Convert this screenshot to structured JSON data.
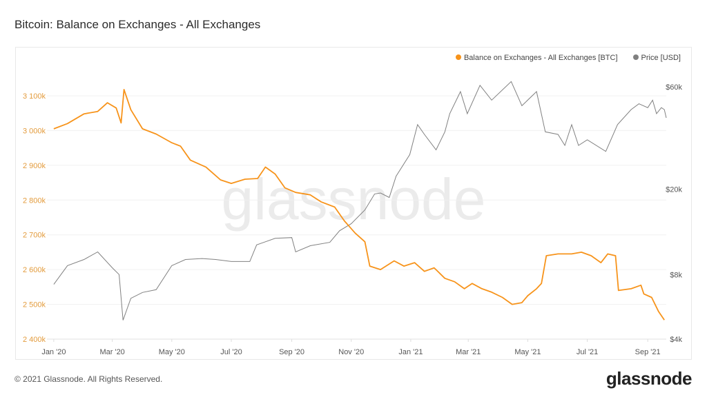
{
  "title": "Bitcoin: Balance on Exchanges - All Exchanges",
  "footer": "© 2021 Glassnode. All Rights Reserved.",
  "logo": "glassnode",
  "watermark": "glassnode",
  "colors": {
    "balance": "#f7931a",
    "balance_text": "#e39b3c",
    "price": "#808080",
    "grid": "#f0f0f0"
  },
  "chart_data": {
    "type": "line",
    "title": "Bitcoin: Balance on Exchanges - All Exchanges",
    "legend_position": "top-right",
    "x_ticks": [
      "Jan '20",
      "Mar '20",
      "May '20",
      "Jul '20",
      "Sep '20",
      "Nov '20",
      "Jan '21",
      "Mar '21",
      "May '21",
      "Jul '21",
      "Sep '21"
    ],
    "x_tick_dates": [
      "2020-01-01",
      "2020-03-01",
      "2020-05-01",
      "2020-07-01",
      "2020-09-01",
      "2020-11-01",
      "2021-01-01",
      "2021-03-01",
      "2021-05-01",
      "2021-07-01",
      "2021-09-01"
    ],
    "x_range": [
      "2019-12-25",
      "2021-09-20"
    ],
    "left_axis": {
      "label": "BTC",
      "ylim": [
        2400,
        3100
      ],
      "ticks": [
        2400,
        2500,
        2600,
        2700,
        2800,
        2900,
        3000,
        3100
      ],
      "tick_labels": [
        "2 400k",
        "2 500k",
        "2 600k",
        "2 700k",
        "2 800k",
        "2 900k",
        "3 000k",
        "3 100k"
      ]
    },
    "right_axis": {
      "label": "USD",
      "scale": "log",
      "ylim": [
        4000,
        60000
      ],
      "ticks": [
        4000,
        8000,
        20000,
        60000
      ],
      "tick_labels": [
        "$4k",
        "$8k",
        "$20k",
        "$60k"
      ]
    },
    "series": [
      {
        "name": "Balance on Exchanges - All Exchanges [BTC]",
        "axis": "left",
        "unit": "thousand BTC",
        "points": [
          [
            "2020-01-01",
            3005
          ],
          [
            "2020-01-15",
            3020
          ],
          [
            "2020-02-01",
            3048
          ],
          [
            "2020-02-15",
            3055
          ],
          [
            "2020-02-25",
            3080
          ],
          [
            "2020-03-05",
            3065
          ],
          [
            "2020-03-10",
            3022
          ],
          [
            "2020-03-13",
            3118
          ],
          [
            "2020-03-20",
            3060
          ],
          [
            "2020-04-01",
            3005
          ],
          [
            "2020-04-15",
            2990
          ],
          [
            "2020-05-01",
            2965
          ],
          [
            "2020-05-10",
            2955
          ],
          [
            "2020-05-20",
            2915
          ],
          [
            "2020-06-05",
            2895
          ],
          [
            "2020-06-20",
            2858
          ],
          [
            "2020-07-01",
            2848
          ],
          [
            "2020-07-15",
            2860
          ],
          [
            "2020-07-28",
            2862
          ],
          [
            "2020-08-05",
            2895
          ],
          [
            "2020-08-15",
            2875
          ],
          [
            "2020-08-25",
            2835
          ],
          [
            "2020-09-05",
            2822
          ],
          [
            "2020-09-20",
            2815
          ],
          [
            "2020-10-01",
            2795
          ],
          [
            "2020-10-15",
            2780
          ],
          [
            "2020-10-25",
            2740
          ],
          [
            "2020-11-05",
            2705
          ],
          [
            "2020-11-15",
            2680
          ],
          [
            "2020-11-20",
            2610
          ],
          [
            "2020-12-01",
            2600
          ],
          [
            "2020-12-15",
            2625
          ],
          [
            "2020-12-25",
            2610
          ],
          [
            "2021-01-05",
            2620
          ],
          [
            "2021-01-15",
            2595
          ],
          [
            "2021-01-25",
            2605
          ],
          [
            "2021-02-05",
            2575
          ],
          [
            "2021-02-15",
            2565
          ],
          [
            "2021-02-25",
            2545
          ],
          [
            "2021-03-05",
            2560
          ],
          [
            "2021-03-15",
            2545
          ],
          [
            "2021-03-25",
            2535
          ],
          [
            "2021-04-05",
            2520
          ],
          [
            "2021-04-15",
            2500
          ],
          [
            "2021-04-25",
            2505
          ],
          [
            "2021-05-01",
            2525
          ],
          [
            "2021-05-10",
            2545
          ],
          [
            "2021-05-15",
            2560
          ],
          [
            "2021-05-20",
            2640
          ],
          [
            "2021-06-01",
            2645
          ],
          [
            "2021-06-15",
            2645
          ],
          [
            "2021-06-25",
            2650
          ],
          [
            "2021-07-05",
            2640
          ],
          [
            "2021-07-15",
            2620
          ],
          [
            "2021-07-22",
            2645
          ],
          [
            "2021-07-30",
            2640
          ],
          [
            "2021-08-02",
            2540
          ],
          [
            "2021-08-15",
            2545
          ],
          [
            "2021-08-25",
            2555
          ],
          [
            "2021-08-28",
            2530
          ],
          [
            "2021-09-05",
            2520
          ],
          [
            "2021-09-12",
            2480
          ],
          [
            "2021-09-18",
            2455
          ]
        ]
      },
      {
        "name": "Price [USD]",
        "axis": "right",
        "unit": "USD",
        "points": [
          [
            "2020-01-01",
            7200
          ],
          [
            "2020-01-15",
            8800
          ],
          [
            "2020-02-01",
            9400
          ],
          [
            "2020-02-15",
            10200
          ],
          [
            "2020-03-01",
            8600
          ],
          [
            "2020-03-08",
            8000
          ],
          [
            "2020-03-12",
            4900
          ],
          [
            "2020-03-20",
            6200
          ],
          [
            "2020-04-01",
            6600
          ],
          [
            "2020-04-15",
            6800
          ],
          [
            "2020-05-01",
            8800
          ],
          [
            "2020-05-15",
            9400
          ],
          [
            "2020-06-01",
            9500
          ],
          [
            "2020-06-15",
            9400
          ],
          [
            "2020-07-01",
            9200
          ],
          [
            "2020-07-20",
            9200
          ],
          [
            "2020-07-27",
            11000
          ],
          [
            "2020-08-15",
            11800
          ],
          [
            "2020-09-01",
            11900
          ],
          [
            "2020-09-05",
            10200
          ],
          [
            "2020-09-20",
            10900
          ],
          [
            "2020-10-10",
            11300
          ],
          [
            "2020-10-20",
            12800
          ],
          [
            "2020-11-01",
            13800
          ],
          [
            "2020-11-15",
            16000
          ],
          [
            "2020-11-25",
            19000
          ],
          [
            "2020-12-01",
            19200
          ],
          [
            "2020-12-10",
            18300
          ],
          [
            "2020-12-17",
            23000
          ],
          [
            "2020-12-31",
            29000
          ],
          [
            "2021-01-08",
            40000
          ],
          [
            "2021-01-15",
            36000
          ],
          [
            "2021-01-27",
            30500
          ],
          [
            "2021-02-05",
            37000
          ],
          [
            "2021-02-10",
            45000
          ],
          [
            "2021-02-21",
            57000
          ],
          [
            "2021-02-28",
            45000
          ],
          [
            "2021-03-13",
            61000
          ],
          [
            "2021-03-25",
            52000
          ],
          [
            "2021-04-14",
            63500
          ],
          [
            "2021-04-25",
            49000
          ],
          [
            "2021-05-10",
            57000
          ],
          [
            "2021-05-19",
            37000
          ],
          [
            "2021-06-01",
            36000
          ],
          [
            "2021-06-08",
            32000
          ],
          [
            "2021-06-15",
            40000
          ],
          [
            "2021-06-22",
            32000
          ],
          [
            "2021-07-01",
            34000
          ],
          [
            "2021-07-20",
            30000
          ],
          [
            "2021-08-01",
            40000
          ],
          [
            "2021-08-15",
            47000
          ],
          [
            "2021-08-23",
            50000
          ],
          [
            "2021-09-01",
            48000
          ],
          [
            "2021-09-06",
            52000
          ],
          [
            "2021-09-10",
            45000
          ],
          [
            "2021-09-15",
            48000
          ],
          [
            "2021-09-18",
            47000
          ],
          [
            "2021-09-20",
            43000
          ]
        ]
      }
    ]
  }
}
